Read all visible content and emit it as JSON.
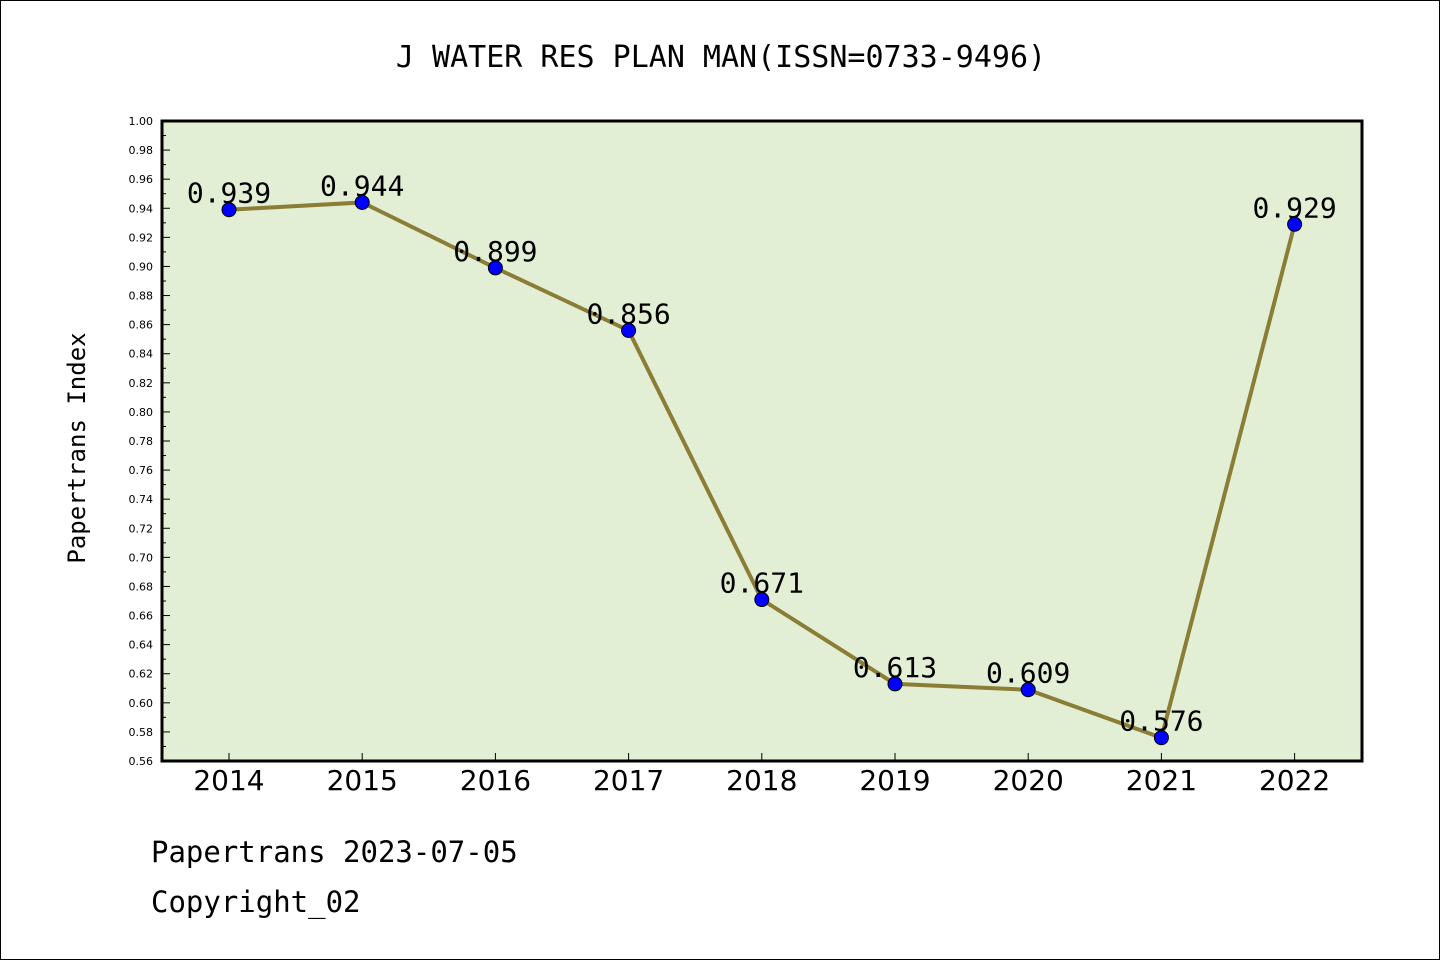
{
  "chart_data": {
    "type": "line",
    "title": "J WATER RES PLAN MAN(ISSN=0733-9496)",
    "xlabel": "",
    "ylabel": "Papertrans Index",
    "categories": [
      "2014",
      "2015",
      "2016",
      "2017",
      "2018",
      "2019",
      "2020",
      "2021",
      "2022"
    ],
    "values": [
      0.939,
      0.944,
      0.899,
      0.856,
      0.671,
      0.613,
      0.609,
      0.576,
      0.929
    ],
    "data_labels": [
      "0.939",
      "0.944",
      "0.899",
      "0.856",
      "0.671",
      "0.613",
      "0.609",
      "0.576",
      "0.929"
    ],
    "ylim": [
      0.56,
      1.0
    ],
    "yticks": [
      "0.56",
      "0.58",
      "0.60",
      "0.62",
      "0.64",
      "0.66",
      "0.68",
      "0.70",
      "0.72",
      "0.74",
      "0.76",
      "0.78",
      "0.80",
      "0.82",
      "0.84",
      "0.86",
      "0.88",
      "0.90",
      "0.92",
      "0.94",
      "0.96",
      "0.98",
      "1.00"
    ],
    "grid": false,
    "legend": "none",
    "colors": {
      "plot_background": "#e2efd5",
      "line": "#8b7d35",
      "marker": "#0000ff"
    }
  },
  "footer": {
    "line1": "Papertrans 2023-07-05",
    "line2": "Copyright_02"
  }
}
